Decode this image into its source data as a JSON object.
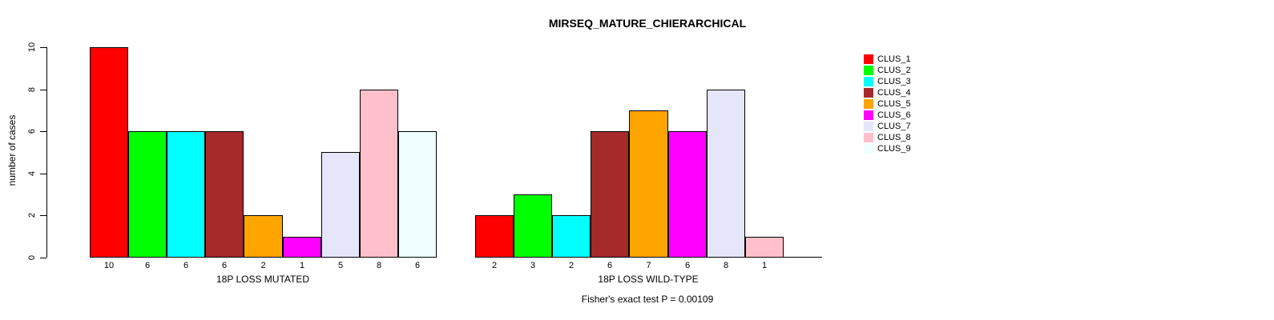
{
  "title": "MIRSEQ_MATURE_CHIERARCHICAL",
  "chart_data": {
    "type": "bar",
    "title": "MIRSEQ_MATURE_CHIERARCHICAL",
    "ylabel": "number of cases",
    "xlabel": "",
    "ylim": [
      0,
      10
    ],
    "yticks": [
      0,
      2,
      4,
      6,
      8,
      10
    ],
    "grid": false,
    "legend_position": "right",
    "clusters": [
      "CLUS_1",
      "CLUS_2",
      "CLUS_3",
      "CLUS_4",
      "CLUS_5",
      "CLUS_6",
      "CLUS_7",
      "CLUS_8",
      "CLUS_9"
    ],
    "colors": [
      "#FF0000",
      "#00FF00",
      "#00FFFF",
      "#A52A2A",
      "#FFA500",
      "#FF00FF",
      "#E6E6FA",
      "#FFC0CB",
      "#F0FFFF"
    ],
    "groups": [
      {
        "label": "18P LOSS MUTATED",
        "values": [
          10,
          6,
          6,
          6,
          2,
          1,
          5,
          8,
          6
        ],
        "bar_labels": [
          "10",
          "6",
          "6",
          "6",
          "2",
          "1",
          "5",
          "8",
          "6"
        ]
      },
      {
        "label": "18P LOSS WILD-TYPE",
        "values": [
          2,
          3,
          2,
          6,
          7,
          6,
          8,
          1,
          0
        ],
        "bar_labels": [
          "2",
          "3",
          "2",
          "6",
          "7",
          "6",
          "8",
          "1",
          ""
        ]
      }
    ],
    "annotation": "Fisher's exact test P = 0.00109"
  }
}
